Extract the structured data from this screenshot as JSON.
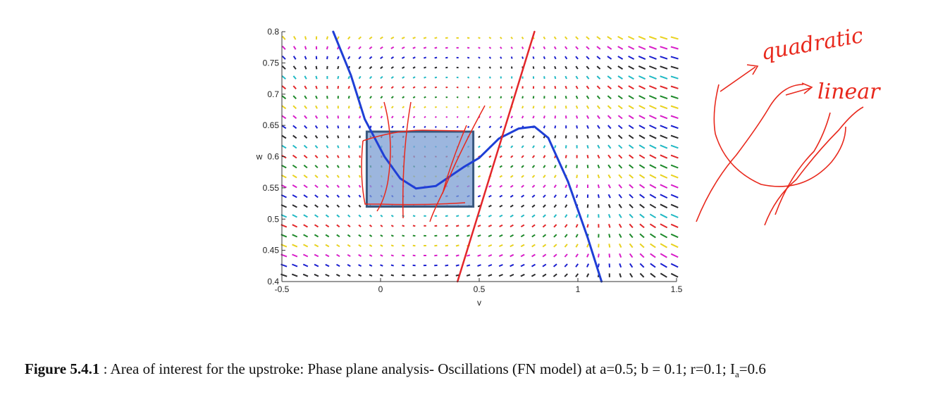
{
  "figure": {
    "label": "Figure 5.4.1",
    "caption_text": " : Area of interest for the upstroke: Phase plane analysis- Oscillations (FN model) at a=0.5; b = 0.1; r=0.1; I",
    "caption_sub": "a",
    "caption_end": "=0.6"
  },
  "chart_data": {
    "type": "quiver",
    "xlabel": "v",
    "ylabel": "w",
    "xlim": [
      -0.5,
      1.5
    ],
    "ylim": [
      0.4,
      0.8
    ],
    "xticks": [
      "-0.5",
      "0",
      "0.5",
      "1",
      "1.5"
    ],
    "yticks": [
      "0.4",
      "0.45",
      "0.5",
      "0.55",
      "0.6",
      "0.65",
      "0.7",
      "0.75",
      "0.8"
    ],
    "grid": false,
    "parameters": {
      "a": 0.5,
      "b": 0.1,
      "r": 0.1,
      "I_a": 0.6
    },
    "nullclines": [
      {
        "kind": "cubic",
        "color": "#1f3fd6",
        "points": [
          [
            -0.24,
            0.8
          ],
          [
            -0.15,
            0.73
          ],
          [
            -0.08,
            0.66
          ],
          [
            0.02,
            0.6
          ],
          [
            0.1,
            0.565
          ],
          [
            0.18,
            0.549
          ],
          [
            0.28,
            0.553
          ],
          [
            0.42,
            0.583
          ],
          [
            0.5,
            0.598
          ],
          [
            0.6,
            0.629
          ],
          [
            0.7,
            0.645
          ],
          [
            0.78,
            0.648
          ],
          [
            0.85,
            0.63
          ],
          [
            0.95,
            0.56
          ],
          [
            1.05,
            0.47
          ],
          [
            1.12,
            0.4
          ]
        ]
      },
      {
        "kind": "linear",
        "color": "#e3262a",
        "points": [
          [
            0.39,
            0.4
          ],
          [
            0.78,
            0.8
          ]
        ]
      }
    ],
    "highlight_box": {
      "v_range": [
        -0.07,
        0.47
      ],
      "w_range": [
        0.52,
        0.64
      ],
      "fill": "#7b9ed3",
      "stroke": "#38587f"
    },
    "vector_colors": [
      "#2a2a2a",
      "#1a1fd0",
      "#d91ec8",
      "#e8d21f",
      "#1d8a2a",
      "#e3262a",
      "#21b9c4"
    ]
  },
  "annotations": {
    "quadratic": "quadratic",
    "linear": "linear"
  }
}
